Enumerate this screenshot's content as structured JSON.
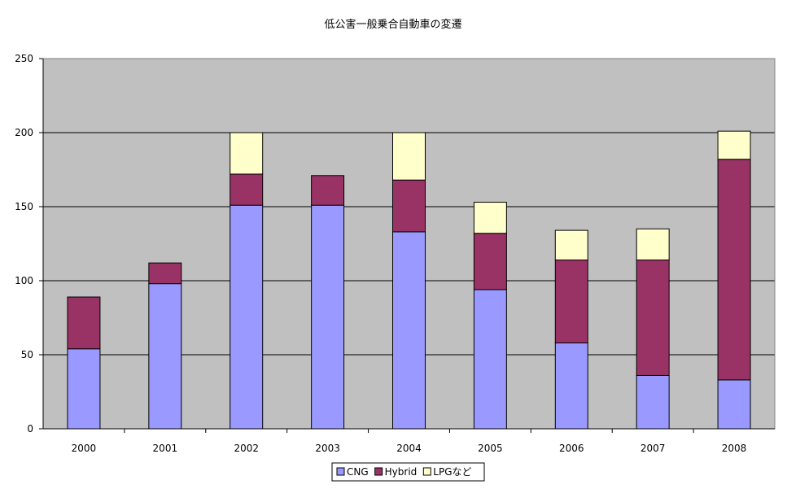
{
  "chart_data": {
    "type": "bar",
    "stacked": true,
    "title": "低公害一般乗合自動車の変遷",
    "xlabel": "",
    "ylabel": "",
    "categories": [
      "2000",
      "2001",
      "2002",
      "2003",
      "2004",
      "2005",
      "2006",
      "2007",
      "2008"
    ],
    "series": [
      {
        "name": "CNG",
        "color": "#9999ff",
        "values": [
          54,
          98,
          151,
          151,
          133,
          94,
          58,
          36,
          33
        ]
      },
      {
        "name": "Hybrid",
        "color": "#993366",
        "values": [
          35,
          14,
          21,
          20,
          35,
          38,
          56,
          78,
          149
        ]
      },
      {
        "name": "LPGなど",
        "color": "#ffffcc",
        "values": [
          0,
          0,
          28,
          0,
          32,
          21,
          20,
          21,
          19
        ]
      }
    ],
    "ylim": [
      0,
      250
    ],
    "yticks": [
      "0",
      "50",
      "100",
      "150",
      "200",
      "250"
    ],
    "grid": true,
    "plot_background": "#c0c0c0",
    "legend_position": "bottom-center"
  }
}
